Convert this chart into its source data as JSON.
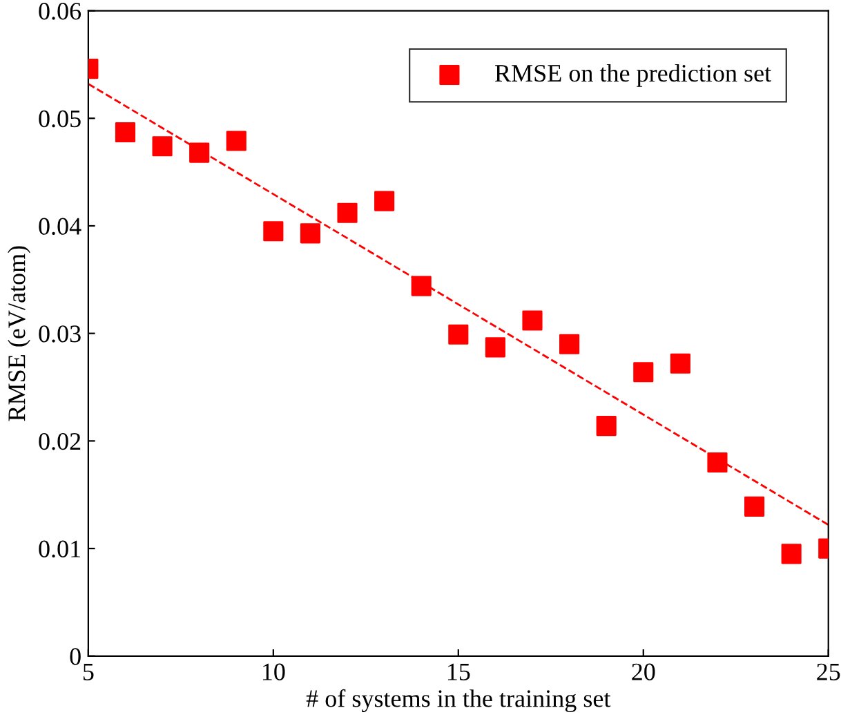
{
  "chart_data": {
    "type": "scatter",
    "xlabel": "# of systems in the training set",
    "ylabel": "RMSE (eV/atom)",
    "x": [
      5,
      6,
      7,
      8,
      9,
      10,
      11,
      12,
      13,
      14,
      15,
      16,
      17,
      18,
      19,
      20,
      21,
      22,
      23,
      24,
      25
    ],
    "series": [
      {
        "name": "RMSE on the prediction set",
        "color": "#ff0000",
        "marker": "square",
        "values": [
          0.0546,
          0.0487,
          0.0474,
          0.0468,
          0.0479,
          0.0395,
          0.0393,
          0.0412,
          0.0423,
          0.0344,
          0.0299,
          0.0287,
          0.0312,
          0.029,
          0.0214,
          0.0264,
          0.0272,
          0.018,
          0.0139,
          0.0095,
          0.01
        ]
      },
      {
        "type": "line",
        "color": "#ff0000",
        "line_style": "dashed",
        "marker": "none",
        "x": [
          5,
          25
        ],
        "values": [
          0.0532,
          0.0122
        ]
      }
    ],
    "xlim": [
      5,
      25
    ],
    "ylim": [
      0,
      0.06
    ],
    "xticks": [
      5,
      10,
      15,
      20,
      25
    ],
    "yticks": [
      0,
      0.01,
      0.02,
      0.03,
      0.04,
      0.05,
      0.06
    ],
    "grid": false,
    "legend": "top right"
  }
}
